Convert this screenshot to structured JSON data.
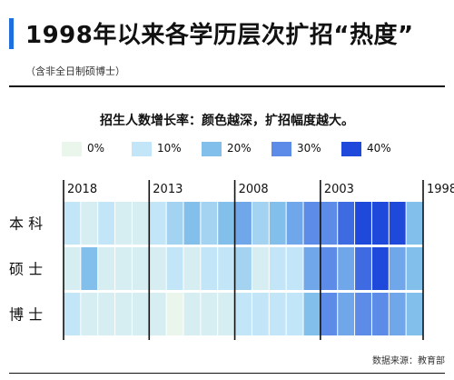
{
  "header": {
    "title": "1998年以来各学历层次扩招“热度”",
    "subtitle": "（含非全日制硕博士）"
  },
  "legend": {
    "title": "招生人数增长率：颜色越深，扩招幅度越大。",
    "items": [
      {
        "label": "0%",
        "color": "#eaf6ec"
      },
      {
        "label": "10%",
        "color": "#c2e6f7"
      },
      {
        "label": "20%",
        "color": "#83bfeb"
      },
      {
        "label": "30%",
        "color": "#5c8ce8"
      },
      {
        "label": "40%",
        "color": "#1f49db"
      }
    ]
  },
  "chart_data": {
    "type": "heatmap",
    "title": "1998年以来各学历层次扩招“热度”",
    "rows": [
      "本 科",
      "硕 士",
      "博 士"
    ],
    "x_tick_labels": [
      "2018",
      "2013",
      "2008",
      "2003",
      "1998"
    ],
    "years": [
      2018,
      2017,
      2016,
      2015,
      2014,
      2013,
      2012,
      2011,
      2010,
      2009,
      2008,
      2007,
      2006,
      2005,
      2004,
      2003,
      2002,
      2001,
      2000,
      1999,
      1998
    ],
    "x_order": "descending",
    "value_unit": "招生人数增长率 %",
    "color_scale": [
      0,
      10,
      20,
      30,
      40
    ],
    "values": [
      [
        10,
        5,
        10,
        5,
        5,
        10,
        15,
        20,
        15,
        20,
        25,
        15,
        20,
        25,
        30,
        30,
        35,
        40,
        45,
        45,
        20
      ],
      [
        5,
        20,
        5,
        5,
        5,
        5,
        10,
        5,
        10,
        10,
        15,
        5,
        10,
        10,
        25,
        30,
        25,
        35,
        40,
        25,
        20
      ],
      [
        10,
        5,
        5,
        5,
        5,
        5,
        0,
        5,
        5,
        5,
        10,
        10,
        10,
        10,
        20,
        30,
        25,
        30,
        30,
        25,
        20
      ]
    ]
  },
  "source": "数据来源：教育部"
}
